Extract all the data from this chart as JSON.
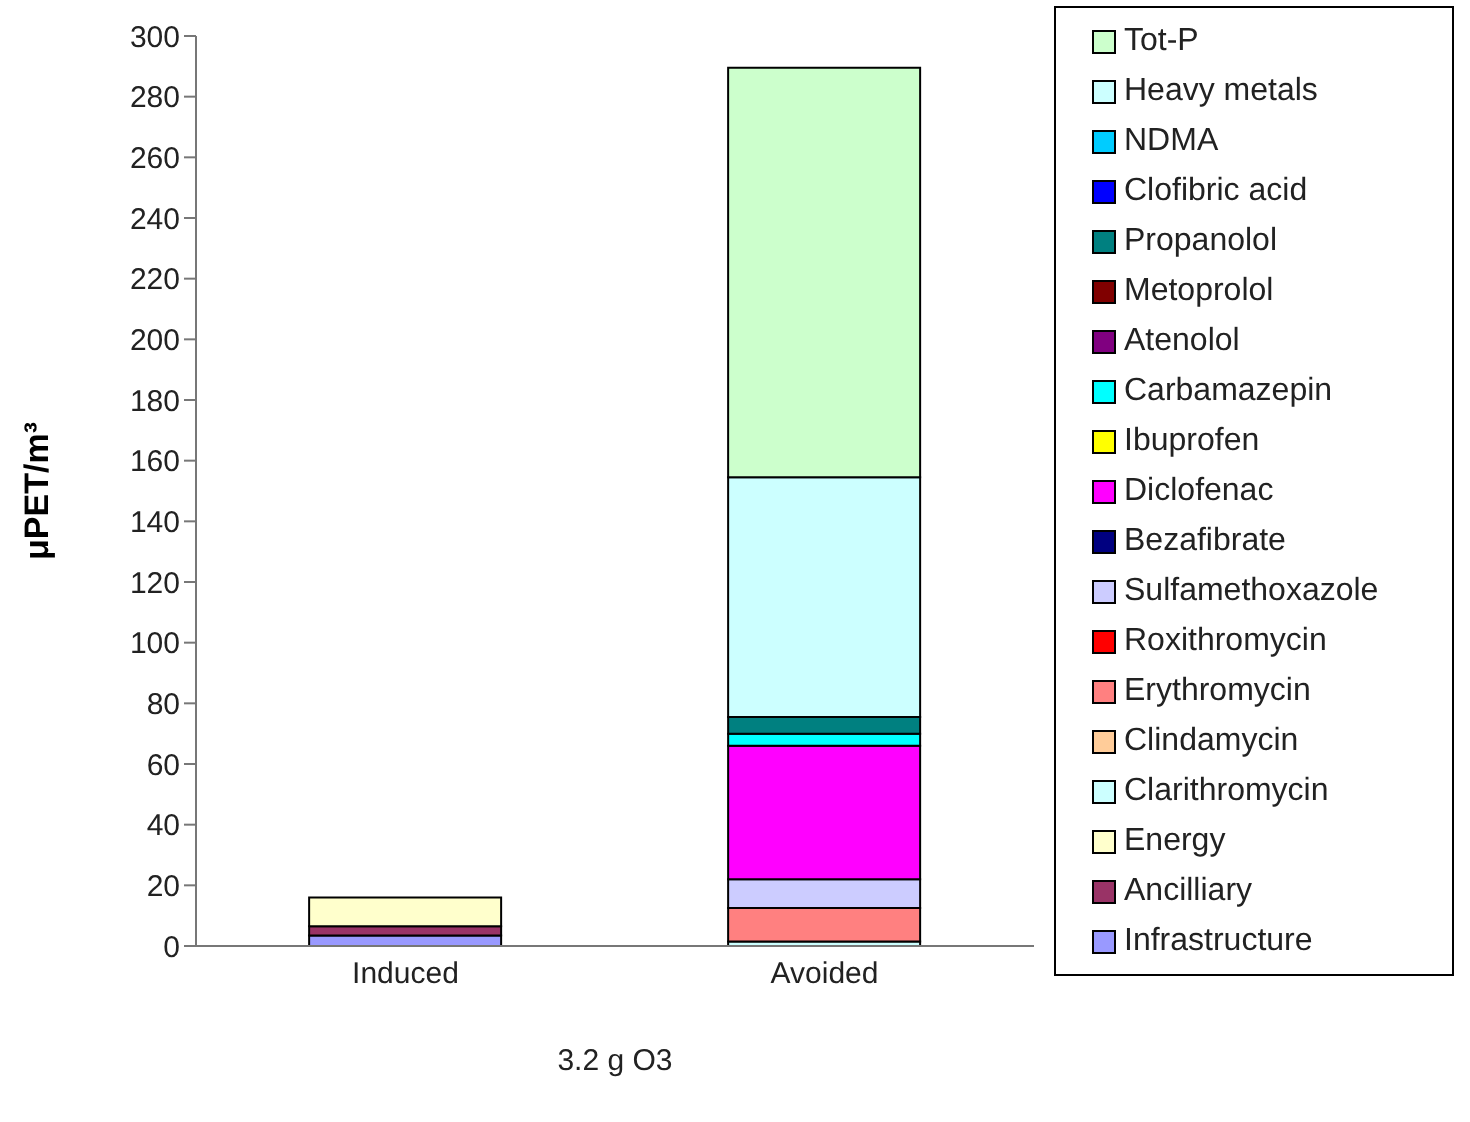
{
  "chart_data": {
    "type": "bar",
    "stacked": true,
    "ylabel": "μPET/m³",
    "xlabel": "3.2 g O3",
    "categories": [
      "Induced",
      "Avoided"
    ],
    "ylim": [
      0,
      300
    ],
    "yticks": [
      0,
      20,
      40,
      60,
      80,
      100,
      120,
      140,
      160,
      180,
      200,
      220,
      240,
      260,
      280,
      300
    ],
    "grid": false,
    "legend": "right",
    "series": [
      {
        "name": "Infrastructure",
        "color": "#9999ff",
        "values": [
          3.5,
          null
        ]
      },
      {
        "name": "Ancilliary",
        "color": "#993366",
        "values": [
          3,
          null
        ]
      },
      {
        "name": "Energy",
        "color": "#ffffcc",
        "values": [
          9.5,
          null
        ]
      },
      {
        "name": "Clarithromycin",
        "color": "#ccffff",
        "values": [
          null,
          1.5
        ]
      },
      {
        "name": "Clindamycin",
        "color": "#ffcc99",
        "values": [
          null,
          null
        ]
      },
      {
        "name": "Erythromycin",
        "color": "#ff8080",
        "values": [
          null,
          11
        ]
      },
      {
        "name": "Roxithromycin",
        "color": "#ff0000",
        "values": [
          null,
          null
        ]
      },
      {
        "name": "Sulfamethoxazole",
        "color": "#ccccff",
        "values": [
          null,
          9.5
        ]
      },
      {
        "name": "Bezafibrate",
        "color": "#000080",
        "values": [
          null,
          null
        ]
      },
      {
        "name": "Diclofenac",
        "color": "#ff00ff",
        "values": [
          null,
          44
        ]
      },
      {
        "name": "Ibuprofen",
        "color": "#ffff00",
        "values": [
          null,
          null
        ]
      },
      {
        "name": "Carbamazepin",
        "color": "#00ffff",
        "values": [
          null,
          4
        ]
      },
      {
        "name": "Atenolol",
        "color": "#800080",
        "values": [
          null,
          null
        ]
      },
      {
        "name": "Metoprolol",
        "color": "#800000",
        "values": [
          null,
          null
        ]
      },
      {
        "name": "Propanolol",
        "color": "#008080",
        "values": [
          null,
          5.5
        ]
      },
      {
        "name": "Clofibric acid",
        "color": "#0000ff",
        "values": [
          null,
          null
        ]
      },
      {
        "name": "NDMA",
        "color": "#00ccff",
        "values": [
          null,
          null
        ]
      },
      {
        "name": "Heavy metals",
        "color": "#ccffff",
        "values": [
          null,
          79
        ]
      },
      {
        "name": "Tot-P",
        "color": "#ccffcc",
        "values": [
          null,
          135
        ]
      }
    ]
  }
}
